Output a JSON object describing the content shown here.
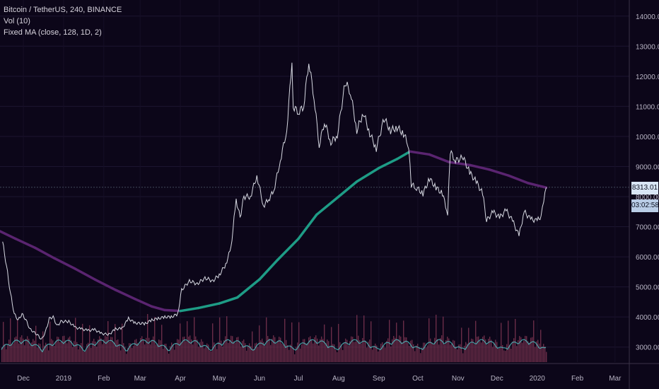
{
  "legend": {
    "symbol": "Bitcoin / TetherUS, 240, BINANCE",
    "volume": "Vol (10)",
    "ma": "Fixed MA (close, 128, 1D, 2)"
  },
  "badges": {
    "last_price": "8313.01",
    "countdown": "03:02:58"
  },
  "colors": {
    "background": "#0c0619",
    "candles": "#d7d9e2",
    "ma_falling": "#5a2470",
    "ma_rising": "#1e9c86",
    "volume_bars": "#7a3450",
    "volume_ma": "#4fc3c3",
    "price_line": "#40485a"
  },
  "chart_data": {
    "type": "line",
    "title": "Bitcoin / TetherUS, 240, BINANCE",
    "y_axis_ticks": [
      "3000.00",
      "4000.00",
      "5000.00",
      "6000.00",
      "7000.00",
      "8000.00",
      "9000.00",
      "10000.00",
      "11000.00",
      "12000.00",
      "13000.00",
      "14000.00"
    ],
    "x_axis_ticks": [
      "Dec",
      "2019",
      "Feb",
      "Mar",
      "Apr",
      "May",
      "Jun",
      "Jul",
      "Aug",
      "Sep",
      "Oct",
      "Nov",
      "Dec",
      "2020",
      "Feb",
      "Mar"
    ],
    "x_axis_tick_dates": [
      "2018-12-01",
      "2019-01-01",
      "2019-02-01",
      "2019-03-01",
      "2019-04-01",
      "2019-05-01",
      "2019-06-01",
      "2019-07-01",
      "2019-08-01",
      "2019-09-01",
      "2019-10-01",
      "2019-11-01",
      "2019-12-01",
      "2020-01-01",
      "2020-02-01",
      "2020-03-01"
    ],
    "ylim": [
      2500,
      14300
    ],
    "x_range": [
      "2018-11-13",
      "2020-03-12"
    ],
    "grid": true,
    "series": [
      {
        "name": "Bitcoin / TetherUS",
        "points": [
          [
            "2018-11-15",
            6500
          ],
          [
            "2018-11-18",
            5700
          ],
          [
            "2018-11-21",
            4800
          ],
          [
            "2018-11-24",
            4100
          ],
          [
            "2018-11-27",
            3900
          ],
          [
            "2018-11-30",
            4100
          ],
          [
            "2018-12-03",
            3900
          ],
          [
            "2018-12-06",
            3600
          ],
          [
            "2018-12-09",
            3500
          ],
          [
            "2018-12-12",
            3400
          ],
          [
            "2018-12-15",
            3250
          ],
          [
            "2018-12-18",
            3500
          ],
          [
            "2018-12-21",
            3950
          ],
          [
            "2018-12-24",
            4000
          ],
          [
            "2018-12-27",
            3700
          ],
          [
            "2018-12-30",
            3850
          ],
          [
            "2019-01-05",
            3850
          ],
          [
            "2019-01-10",
            3650
          ],
          [
            "2019-01-15",
            3600
          ],
          [
            "2019-01-20",
            3550
          ],
          [
            "2019-01-25",
            3580
          ],
          [
            "2019-01-30",
            3450
          ],
          [
            "2019-02-05",
            3420
          ],
          [
            "2019-02-10",
            3600
          ],
          [
            "2019-02-15",
            3620
          ],
          [
            "2019-02-20",
            3950
          ],
          [
            "2019-02-25",
            3800
          ],
          [
            "2019-03-05",
            3780
          ],
          [
            "2019-03-10",
            3900
          ],
          [
            "2019-03-15",
            3950
          ],
          [
            "2019-03-20",
            4000
          ],
          [
            "2019-03-25",
            4000
          ],
          [
            "2019-03-30",
            4100
          ],
          [
            "2019-04-02",
            4900
          ],
          [
            "2019-04-08",
            5200
          ],
          [
            "2019-04-14",
            5100
          ],
          [
            "2019-04-20",
            5300
          ],
          [
            "2019-04-26",
            5200
          ],
          [
            "2019-05-01",
            5400
          ],
          [
            "2019-05-06",
            5750
          ],
          [
            "2019-05-10",
            6300
          ],
          [
            "2019-05-14",
            7900
          ],
          [
            "2019-05-17",
            7300
          ],
          [
            "2019-05-20",
            8000
          ],
          [
            "2019-05-25",
            8000
          ],
          [
            "2019-05-30",
            8700
          ],
          [
            "2019-06-04",
            7700
          ],
          [
            "2019-06-08",
            7900
          ],
          [
            "2019-06-12",
            8200
          ],
          [
            "2019-06-17",
            9200
          ],
          [
            "2019-06-22",
            10200
          ],
          [
            "2019-06-26",
            12500
          ],
          [
            "2019-06-27",
            11000
          ],
          [
            "2019-07-01",
            10800
          ],
          [
            "2019-07-05",
            11000
          ],
          [
            "2019-07-09",
            12500
          ],
          [
            "2019-07-13",
            11300
          ],
          [
            "2019-07-17",
            9700
          ],
          [
            "2019-07-21",
            10500
          ],
          [
            "2019-07-26",
            9800
          ],
          [
            "2019-07-31",
            10050
          ],
          [
            "2019-08-06",
            11800
          ],
          [
            "2019-08-10",
            11500
          ],
          [
            "2019-08-15",
            10200
          ],
          [
            "2019-08-20",
            10800
          ],
          [
            "2019-08-25",
            10100
          ],
          [
            "2019-08-30",
            9600
          ],
          [
            "2019-09-05",
            10600
          ],
          [
            "2019-09-10",
            10200
          ],
          [
            "2019-09-15",
            10300
          ],
          [
            "2019-09-20",
            10100
          ],
          [
            "2019-09-24",
            9700
          ],
          [
            "2019-09-26",
            8400
          ],
          [
            "2019-09-30",
            8300
          ],
          [
            "2019-10-05",
            8100
          ],
          [
            "2019-10-10",
            8600
          ],
          [
            "2019-10-15",
            8300
          ],
          [
            "2019-10-20",
            8100
          ],
          [
            "2019-10-24",
            7450
          ],
          [
            "2019-10-26",
            9500
          ],
          [
            "2019-10-30",
            9200
          ],
          [
            "2019-11-05",
            9300
          ],
          [
            "2019-11-10",
            8800
          ],
          [
            "2019-11-15",
            8500
          ],
          [
            "2019-11-20",
            8100
          ],
          [
            "2019-11-23",
            7200
          ],
          [
            "2019-11-28",
            7500
          ],
          [
            "2019-12-03",
            7300
          ],
          [
            "2019-12-08",
            7550
          ],
          [
            "2019-12-13",
            7200
          ],
          [
            "2019-12-18",
            6700
          ],
          [
            "2019-12-22",
            7500
          ],
          [
            "2019-12-27",
            7250
          ],
          [
            "2020-01-01",
            7200
          ],
          [
            "2020-01-04",
            7350
          ],
          [
            "2020-01-06",
            7800
          ],
          [
            "2020-01-08",
            8313
          ]
        ]
      },
      {
        "name": "Fixed MA (close, 128, 1D, 2)",
        "points": [
          [
            "2018-11-13",
            6850
          ],
          [
            "2018-11-25",
            6600
          ],
          [
            "2018-12-10",
            6300
          ],
          [
            "2018-12-25",
            5950
          ],
          [
            "2019-01-10",
            5600
          ],
          [
            "2019-01-25",
            5250
          ],
          [
            "2019-02-10",
            4900
          ],
          [
            "2019-02-25",
            4600
          ],
          [
            "2019-03-10",
            4350
          ],
          [
            "2019-03-20",
            4230
          ],
          [
            "2019-04-01",
            4200
          ],
          [
            "2019-04-15",
            4300
          ],
          [
            "2019-05-01",
            4450
          ],
          [
            "2019-05-15",
            4650
          ],
          [
            "2019-06-01",
            5250
          ],
          [
            "2019-06-15",
            5900
          ],
          [
            "2019-07-01",
            6600
          ],
          [
            "2019-07-15",
            7400
          ],
          [
            "2019-08-01",
            8000
          ],
          [
            "2019-08-15",
            8500
          ],
          [
            "2019-09-01",
            8950
          ],
          [
            "2019-09-15",
            9250
          ],
          [
            "2019-09-25",
            9500
          ],
          [
            "2019-10-10",
            9400
          ],
          [
            "2019-10-25",
            9150
          ],
          [
            "2019-11-10",
            9050
          ],
          [
            "2019-11-25",
            8900
          ],
          [
            "2019-12-10",
            8700
          ],
          [
            "2019-12-25",
            8450
          ],
          [
            "2020-01-08",
            8300
          ]
        ]
      }
    ]
  }
}
